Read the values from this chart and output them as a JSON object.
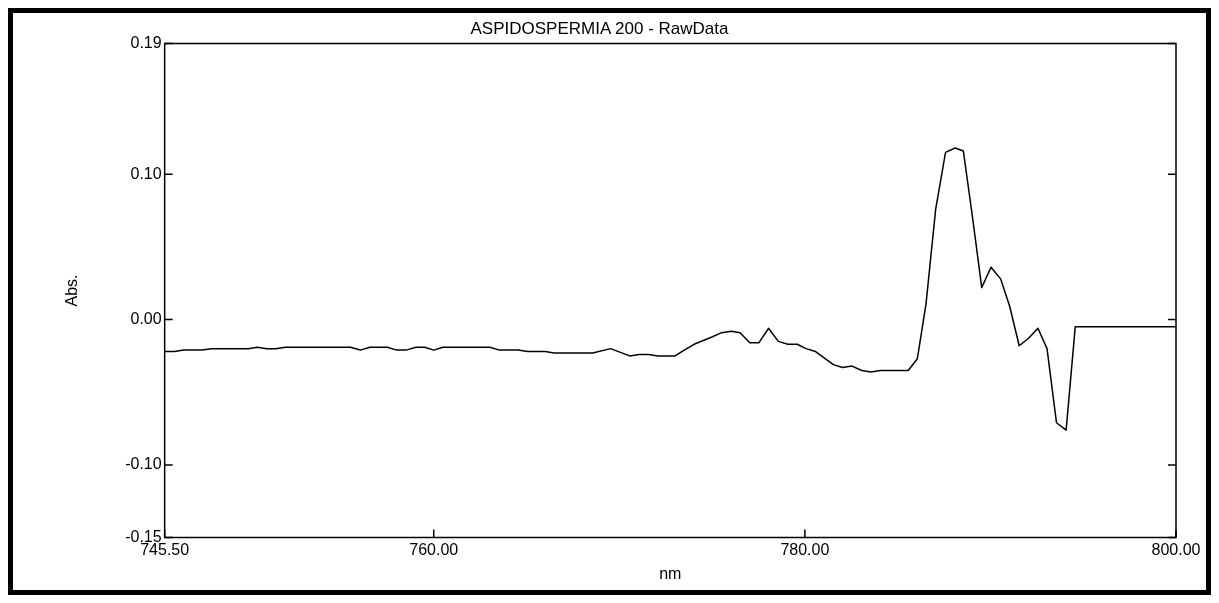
{
  "chart_data": {
    "type": "line",
    "title": "ASPIDOSPERMIA 200 - RawData",
    "xlabel": "nm",
    "ylabel": "Abs.",
    "xlim": [
      745.5,
      800
    ],
    "xticks": [
      {
        "value": 745.5,
        "label": "745.50"
      },
      {
        "value": 760,
        "label": "760.00"
      },
      {
        "value": 780,
        "label": "780.00"
      },
      {
        "value": 800,
        "label": "800.00"
      }
    ],
    "ylim": [
      -0.15,
      0.19
    ],
    "yticks": [
      {
        "value": -0.15,
        "label": "-0.15"
      },
      {
        "value": -0.1,
        "label": "-0.10"
      },
      {
        "value": 0,
        "label": "0.00"
      },
      {
        "value": 0.1,
        "label": "0.10"
      },
      {
        "value": 0.19,
        "label": "0.19"
      }
    ],
    "grid": false,
    "legend": false,
    "marker": "none",
    "line_style": "solid",
    "series": [
      {
        "color": "#000000",
        "x": [
          745.52,
          746.03,
          746.52,
          747.51,
          748.02,
          750.01,
          750.5,
          751.0,
          751.49,
          752.0,
          755.51,
          756.05,
          756.56,
          757.5,
          758.01,
          758.51,
          759.04,
          759.51,
          760.0,
          760.5,
          763.03,
          763.54,
          764.55,
          765.06,
          766.0,
          766.5,
          768.57,
          769.53,
          770.56,
          771.07,
          771.58,
          772.08,
          773.01,
          773.5,
          774.03,
          774.99,
          775.51,
          776.04,
          776.51,
          777.03,
          777.52,
          778.04,
          778.57,
          779.09,
          779.59,
          780.06,
          780.58,
          781.11,
          781.54,
          782.03,
          782.54,
          783.07,
          783.55,
          784.08,
          785.57,
          786.06,
          786.53,
          787.05,
          787.58,
          788.1,
          788.54,
          789.06,
          789.53,
          790.03,
          790.55,
          791.04,
          791.55,
          792.04,
          792.56,
          793.05,
          793.56,
          794.08,
          794.57,
          800.0
        ],
        "values": [
          -0.022,
          -0.022,
          -0.021,
          -0.021,
          -0.02,
          -0.02,
          -0.019,
          -0.02,
          -0.02,
          -0.019,
          -0.019,
          -0.021,
          -0.019,
          -0.019,
          -0.021,
          -0.021,
          -0.019,
          -0.019,
          -0.021,
          -0.019,
          -0.019,
          -0.021,
          -0.021,
          -0.022,
          -0.022,
          -0.023,
          -0.023,
          -0.02,
          -0.025,
          -0.024,
          -0.024,
          -0.025,
          -0.025,
          -0.021,
          -0.017,
          -0.012,
          -0.009,
          -0.008,
          -0.009,
          -0.016,
          -0.016,
          -0.006,
          -0.015,
          -0.017,
          -0.017,
          -0.02,
          -0.022,
          -0.027,
          -0.031,
          -0.033,
          -0.032,
          -0.035,
          -0.036,
          -0.035,
          -0.035,
          -0.027,
          0.011,
          0.076,
          0.115,
          0.118,
          0.116,
          0.068,
          0.022,
          0.036,
          0.028,
          0.009,
          -0.018,
          -0.013,
          -0.006,
          -0.02,
          -0.071,
          -0.076,
          -0.005,
          -0.005
        ]
      }
    ]
  }
}
